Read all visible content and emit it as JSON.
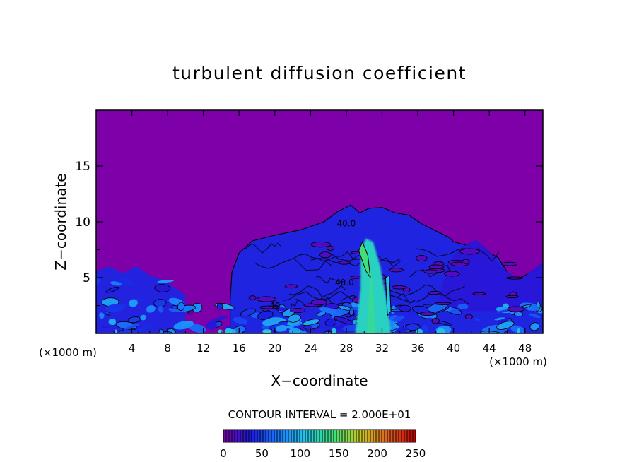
{
  "chart_data": {
    "type": "heatmap",
    "title": "turbulent diffusion coefficient",
    "xlabel": "X−coordinate",
    "ylabel": "Z−coordinate",
    "x_unit_label": "(×1000 m)",
    "z_unit_label": "(×1000 m)",
    "xlim": [
      0,
      50
    ],
    "ylim": [
      0,
      20
    ],
    "x_ticks": [
      4,
      8,
      12,
      16,
      20,
      24,
      28,
      32,
      36,
      40,
      44,
      48
    ],
    "y_ticks": [
      5,
      10,
      15
    ],
    "contour_interval_text": "CONTOUR INTERVAL = 2.000E+01",
    "contour_interval": 20,
    "contour_labels": [
      {
        "text": "40.0",
        "x": 28,
        "z": 9.6
      },
      {
        "text": "40.0",
        "x": 27.8,
        "z": 4.3
      },
      {
        "text": "40",
        "x": 20,
        "z": 2.2
      }
    ],
    "colorbar": {
      "min": 0,
      "max": 250,
      "ticks": [
        0,
        50,
        100,
        150,
        200,
        250
      ],
      "colors": [
        "#7a00a8",
        "#1a1ae0",
        "#1a7aff",
        "#22c8e8",
        "#3ce07a",
        "#c8c820",
        "#e06020",
        "#c80000"
      ]
    },
    "background_color": "#7d00a8",
    "structures": [
      {
        "kind": "boundary_layer",
        "x_range": [
          0,
          50
        ],
        "z_top": 2.5,
        "value": 60
      },
      {
        "kind": "cloud_plume",
        "x_range": [
          15,
          40
        ],
        "z_top": 11,
        "value": 40
      },
      {
        "kind": "updraft_core",
        "x_range": [
          29,
          33
        ],
        "z_top": 8.5,
        "value": 120
      },
      {
        "kind": "cloud_right",
        "x_range": [
          38,
          50
        ],
        "z_top": 8.5,
        "value": 30
      },
      {
        "kind": "cells_left",
        "x_range": [
          0,
          10
        ],
        "z_top": 6,
        "value": 40
      }
    ]
  }
}
